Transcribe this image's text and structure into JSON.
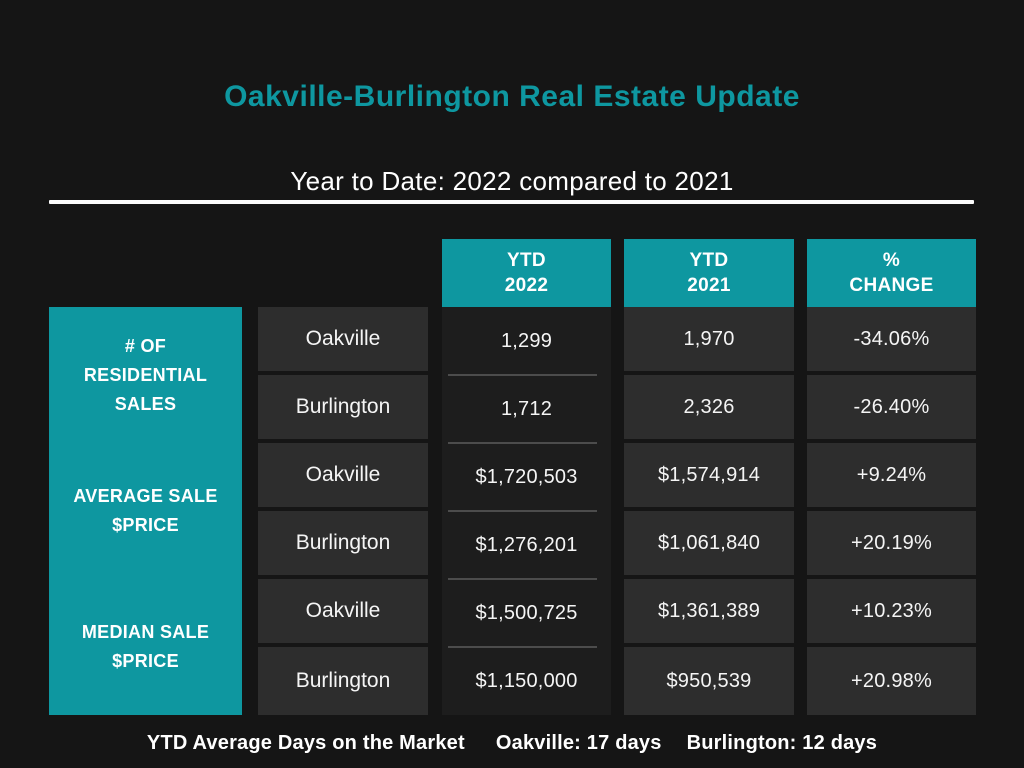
{
  "header": {
    "title": "Oakville-Burlington Real Estate Update",
    "subtitle": "Year to Date: 2022 compared to 2021"
  },
  "colors": {
    "background": "#151515",
    "accent_teal": "#0e97a0",
    "cell_gray": "#2d2d2d",
    "col2022_cell": "#1d1d1d",
    "divider_gray": "#4c4c4c",
    "text_white": "#ffffff",
    "rule_white": "#fbfbfb"
  },
  "table": {
    "column_headers": [
      {
        "line1": "YTD",
        "line2": "2022"
      },
      {
        "line1": "YTD",
        "line2": "2021"
      },
      {
        "line1": "%",
        "line2": "CHANGE"
      }
    ],
    "categories": [
      "# OF\nRESIDENTIAL\nSALES",
      "AVERAGE SALE\n$PRICE",
      "MEDIAN SALE\n$PRICE"
    ],
    "rows": [
      {
        "city": "Oakville",
        "ytd2022": "1,299",
        "ytd2021": "1,970",
        "change": "-34.06%"
      },
      {
        "city": "Burlington",
        "ytd2022": "1,712",
        "ytd2021": "2,326",
        "change": "-26.40%"
      },
      {
        "city": "Oakville",
        "ytd2022": "$1,720,503",
        "ytd2021": "$1,574,914",
        "change": "+9.24%"
      },
      {
        "city": "Burlington",
        "ytd2022": "$1,276,201",
        "ytd2021": "$1,061,840",
        "change": "+20.19%"
      },
      {
        "city": "Oakville",
        "ytd2022": "$1,500,725",
        "ytd2021": "$1,361,389",
        "change": "+10.23%"
      },
      {
        "city": "Burlington",
        "ytd2022": "$1,150,000",
        "ytd2021": "$950,539",
        "change": "+20.98%"
      }
    ]
  },
  "footer": {
    "market_label": "YTD Average Days on the Market",
    "oakville_days": "Oakville: 17 days",
    "burlington_days": "Burlington: 12 days"
  },
  "chart_data": {
    "type": "table",
    "title": "Oakville-Burlington Real Estate Update",
    "subtitle": "Year to Date: 2022 compared to 2021",
    "columns": [
      "Metric",
      "City",
      "YTD 2022",
      "YTD 2021",
      "% Change"
    ],
    "rows": [
      {
        "metric": "# of Residential Sales",
        "city": "Oakville",
        "ytd_2022": 1299,
        "ytd_2021": 1970,
        "pct_change": -34.06
      },
      {
        "metric": "# of Residential Sales",
        "city": "Burlington",
        "ytd_2022": 1712,
        "ytd_2021": 2326,
        "pct_change": -26.4
      },
      {
        "metric": "Average Sale $Price",
        "city": "Oakville",
        "ytd_2022": 1720503,
        "ytd_2021": 1574914,
        "pct_change": 9.24
      },
      {
        "metric": "Average Sale $Price",
        "city": "Burlington",
        "ytd_2022": 1276201,
        "ytd_2021": 1061840,
        "pct_change": 20.19
      },
      {
        "metric": "Median Sale $Price",
        "city": "Oakville",
        "ytd_2022": 1500725,
        "ytd_2021": 1361389,
        "pct_change": 10.23
      },
      {
        "metric": "Median Sale $Price",
        "city": "Burlington",
        "ytd_2022": 1150000,
        "ytd_2021": 950539,
        "pct_change": 20.98
      }
    ],
    "ytd_average_days_on_market": {
      "Oakville": 17,
      "Burlington": 12
    }
  }
}
